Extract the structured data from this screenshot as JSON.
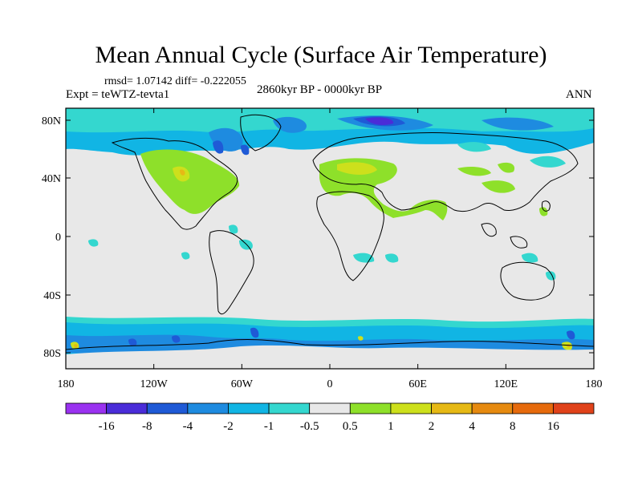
{
  "title": "Mean Annual Cycle (Surface Air Temperature)",
  "stats": "rmsd= 1.07142 diff= -0.222055",
  "experiment": "Expt = teWTZ-tevta1",
  "period": "2860kyr BP - 0000kyr BP",
  "season": "ANN",
  "axes": {
    "lat_labels": [
      "80N",
      "40N",
      "0",
      "40S",
      "80S"
    ],
    "lon_labels": [
      "180",
      "120W",
      "60W",
      "0",
      "60E",
      "120E",
      "180"
    ]
  },
  "colorbar": {
    "labels": [
      "-16",
      "-8",
      "-4",
      "-2",
      "-1",
      "-0.5",
      "0.5",
      "1",
      "2",
      "4",
      "8",
      "16"
    ],
    "colors": [
      "#9a32f0",
      "#4a2cd8",
      "#1f5ad6",
      "#1e8be0",
      "#11b5e4",
      "#34d7cf",
      "#e8e8e8",
      "#8ee02a",
      "#cde01c",
      "#e6b915",
      "#e68a10",
      "#e66a0c",
      "#e0421a"
    ]
  }
}
